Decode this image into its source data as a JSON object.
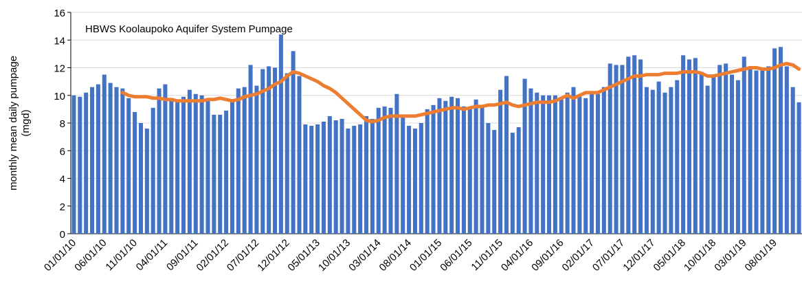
{
  "chart_data": {
    "type": "bar",
    "title": "HBWS  Koolaupoko Aquifer System Pumpage",
    "y_label": [
      "monthly mean daily pumpage",
      "(mgd)"
    ],
    "categories": [
      "01/01/10",
      null,
      null,
      null,
      null,
      "06/01/10",
      null,
      null,
      null,
      null,
      "11/01/10",
      null,
      null,
      null,
      null,
      "04/01/11",
      null,
      null,
      null,
      null,
      "09/01/11",
      null,
      null,
      null,
      null,
      "02/01/12",
      null,
      null,
      null,
      null,
      "07/01/12",
      null,
      null,
      null,
      null,
      "12/01/12",
      null,
      null,
      null,
      null,
      "05/01/13",
      null,
      null,
      null,
      null,
      "10/01/13",
      null,
      null,
      null,
      null,
      "03/01/14",
      null,
      null,
      null,
      null,
      "08/01/14",
      null,
      null,
      null,
      null,
      "01/01/15",
      null,
      null,
      null,
      null,
      "06/01/15",
      null,
      null,
      null,
      null,
      "11/01/15",
      null,
      null,
      null,
      null,
      "04/01/16",
      null,
      null,
      null,
      null,
      "09/01/16",
      null,
      null,
      null,
      null,
      "02/01/17",
      null,
      null,
      null,
      null,
      "07/01/17",
      null,
      null,
      null,
      null,
      "12/01/17",
      null,
      null,
      null,
      null,
      "05/01/18",
      null,
      null,
      null,
      null,
      "10/01/18",
      null,
      null,
      null,
      null,
      "03/01/19",
      null,
      null,
      null,
      null,
      "08/01/19",
      null,
      null,
      null,
      null
    ],
    "series": [
      {
        "type": "bar",
        "color": "#4472c4",
        "values": [
          10.0,
          9.9,
          10.2,
          10.6,
          10.8,
          11.5,
          10.9,
          10.6,
          10.5,
          9.8,
          8.8,
          8.0,
          7.6,
          9.1,
          10.5,
          10.8,
          9.8,
          9.5,
          9.9,
          10.4,
          10.1,
          10.0,
          9.6,
          8.6,
          8.6,
          8.9,
          9.7,
          10.5,
          10.6,
          12.2,
          10.7,
          11.9,
          12.1,
          12.0,
          14.4,
          11.6,
          13.2,
          11.4,
          7.9,
          7.8,
          7.9,
          8.1,
          8.5,
          8.2,
          8.3,
          7.6,
          7.8,
          7.9,
          8.5,
          8.3,
          9.1,
          9.2,
          9.1,
          10.1,
          8.6,
          7.8,
          7.6,
          8.0,
          9.0,
          9.3,
          9.8,
          9.6,
          9.9,
          9.8,
          9.2,
          9.0,
          9.7,
          9.1,
          8.0,
          7.5,
          10.4,
          11.4,
          7.3,
          7.7,
          11.2,
          10.5,
          10.2,
          10.0,
          10.0,
          10.0,
          9.7,
          10.2,
          10.6,
          9.9,
          9.8,
          10.2,
          10.1,
          10.6,
          12.3,
          12.2,
          12.2,
          12.8,
          12.9,
          12.6,
          10.6,
          10.4,
          11.0,
          10.2,
          10.6,
          11.1,
          12.9,
          12.6,
          12.7,
          11.7,
          10.7,
          11.3,
          12.2,
          12.3,
          11.5,
          11.1,
          12.8,
          12.0,
          11.8,
          11.8,
          12.1,
          13.4,
          13.5,
          12.1,
          10.6,
          9.5
        ]
      },
      {
        "type": "line",
        "color": "#ed7d31",
        "values": [
          null,
          null,
          null,
          null,
          null,
          null,
          null,
          null,
          10.2,
          10.0,
          9.9,
          9.9,
          9.9,
          9.8,
          9.8,
          9.7,
          9.7,
          9.6,
          9.6,
          9.6,
          9.6,
          9.6,
          9.7,
          9.7,
          9.8,
          9.7,
          9.6,
          9.7,
          9.9,
          10.0,
          10.1,
          10.3,
          10.5,
          10.8,
          11.0,
          11.4,
          11.7,
          11.6,
          11.4,
          11.2,
          11.0,
          10.7,
          10.5,
          10.2,
          9.8,
          9.4,
          9.0,
          8.6,
          8.2,
          8.1,
          8.2,
          8.4,
          8.5,
          8.5,
          8.5,
          8.5,
          8.5,
          8.6,
          8.7,
          8.8,
          8.9,
          9.0,
          9.1,
          9.1,
          9.0,
          9.1,
          9.2,
          9.2,
          9.3,
          9.3,
          9.4,
          9.5,
          9.3,
          9.2,
          9.3,
          9.4,
          9.5,
          9.5,
          9.5,
          9.6,
          9.8,
          10.0,
          9.8,
          10.0,
          10.2,
          10.2,
          10.2,
          10.4,
          10.6,
          10.8,
          11.0,
          11.2,
          11.4,
          11.4,
          11.5,
          11.5,
          11.5,
          11.6,
          11.6,
          11.6,
          11.7,
          11.7,
          11.7,
          11.6,
          11.4,
          11.4,
          11.5,
          11.6,
          11.7,
          11.8,
          11.9,
          12.0,
          12.0,
          11.9,
          11.9,
          12.0,
          12.2,
          12.3,
          12.2,
          11.9
        ]
      }
    ],
    "ylim": [
      0,
      16
    ],
    "yticks": [
      0,
      2,
      4,
      6,
      8,
      10,
      12,
      14,
      16
    ],
    "grid": true
  }
}
